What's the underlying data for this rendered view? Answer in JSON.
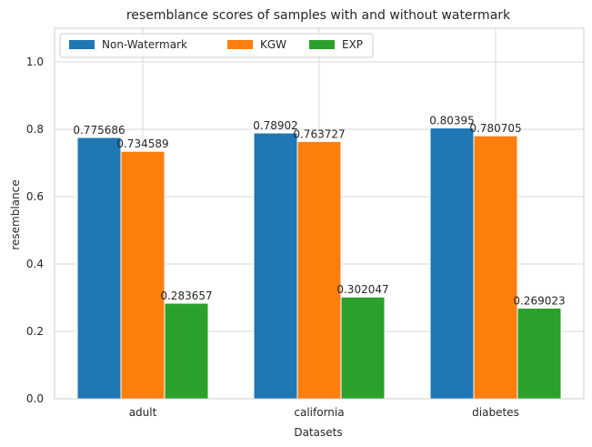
{
  "chart_data": {
    "type": "bar",
    "title": "resemblance scores of samples with and without watermark",
    "xlabel": "Datasets",
    "ylabel": "resemblance",
    "categories": [
      "adult",
      "california",
      "diabetes"
    ],
    "ylim": [
      0,
      1.1
    ],
    "yticks": [
      "0.0",
      "0.2",
      "0.4",
      "0.6",
      "0.8",
      "1.0"
    ],
    "ytick_values": [
      0,
      0.2,
      0.4,
      0.6,
      0.8,
      1.0
    ],
    "grid": true,
    "legend_position": "top-left",
    "series": [
      {
        "name": "Non-Watermark",
        "color": "#1f77b4",
        "values": [
          0.775686,
          0.78902,
          0.80395
        ],
        "labels": [
          "0.775686",
          "0.78902",
          "0.80395"
        ]
      },
      {
        "name": "KGW",
        "color": "#ff7f0e",
        "values": [
          0.734589,
          0.763727,
          0.780705
        ],
        "labels": [
          "0.734589",
          "0.763727",
          "0.780705"
        ]
      },
      {
        "name": "EXP",
        "color": "#2ca02c",
        "values": [
          0.283657,
          0.302047,
          0.269023
        ],
        "labels": [
          "0.283657",
          "0.302047",
          "0.269023"
        ]
      }
    ]
  }
}
